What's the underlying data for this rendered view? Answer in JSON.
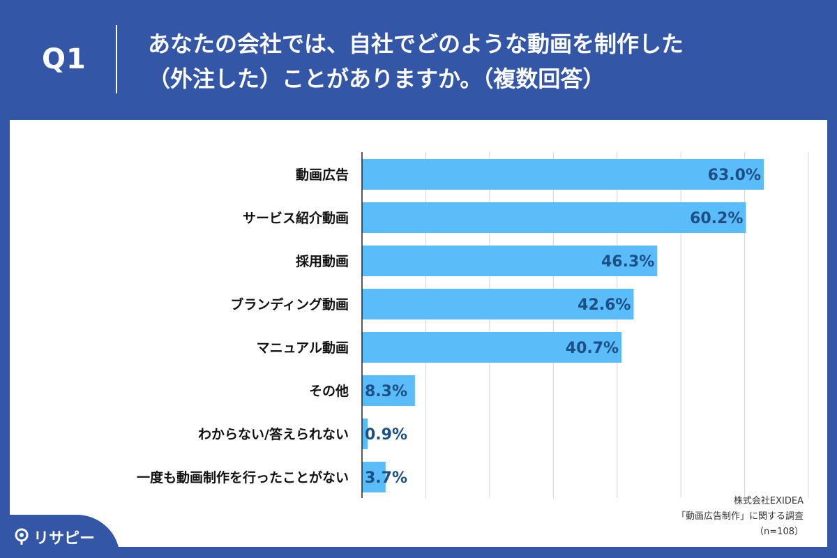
{
  "header": {
    "qnum": "Q1",
    "line1": "あなたの会社では、自社でどのような動画を制作した",
    "line2": "（外注した）ことがありますか。（複数回答）"
  },
  "source": {
    "line1": "株式会社EXIDEA",
    "line2": "「動画広告制作」に関する調査",
    "line3": "（n=108）"
  },
  "logo": {
    "text": "リサピー"
  },
  "colors": {
    "bar": "#5abcf9",
    "background": "#3456a7",
    "value": "#1c4f86"
  },
  "chart_data": {
    "type": "bar",
    "orientation": "horizontal",
    "categories": [
      "動画広告",
      "サービス紹介動画",
      "採用動画",
      "ブランディング動画",
      "マニュアル動画",
      "その他",
      "わからない/答えられない",
      "一度も動画制作を行ったことがない"
    ],
    "values": [
      63.0,
      60.2,
      46.3,
      42.6,
      40.7,
      8.3,
      0.9,
      3.7
    ],
    "value_labels": [
      "63.0%",
      "60.2%",
      "46.3%",
      "42.6%",
      "40.7%",
      "8.3%",
      "0.9%",
      "3.7%"
    ],
    "xlim": [
      0,
      70
    ],
    "grid": true,
    "title": "あなたの会社では、自社でどのような動画を制作した（外注した）ことがありますか。（複数回答）"
  }
}
